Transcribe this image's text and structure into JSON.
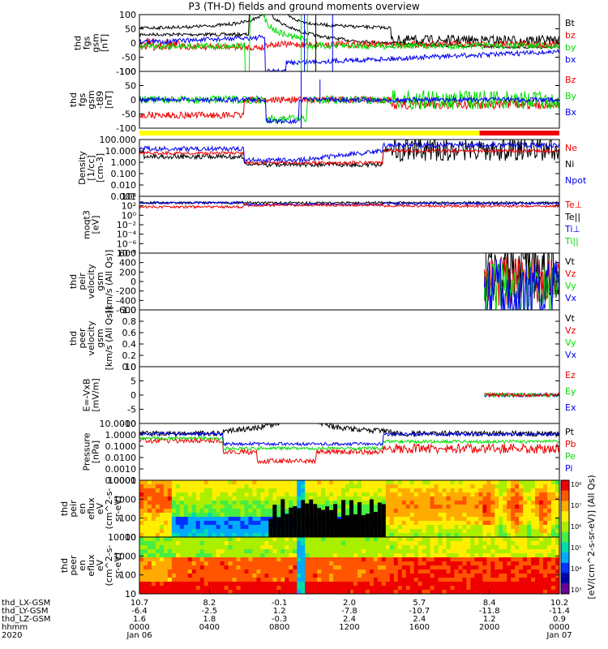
{
  "title": "P3 (TH-D) fields and ground moments overview",
  "colors": {
    "black": "#000000",
    "red": "#ee0000",
    "green": "#00dd00",
    "blue": "#0000ee",
    "yellow": "#ffff00",
    "orbit_red": "#ee0000"
  },
  "chart_data": [
    {
      "type": "line",
      "name": "fgs",
      "ylabel": [
        "thd",
        "fgs",
        "gsm",
        "[nT]"
      ],
      "yticks": [
        "100",
        "50",
        "0",
        "-50",
        "-100"
      ],
      "ylim": [
        -100,
        100
      ],
      "legend": [
        {
          "label": "Bt",
          "color": "black"
        },
        {
          "label": "bz",
          "color": "red"
        },
        {
          "label": "by",
          "color": "green"
        },
        {
          "label": "bx",
          "color": "blue"
        }
      ]
    },
    {
      "type": "line",
      "name": "fgs_t89",
      "ylabel": [
        "thd",
        "fgs",
        "gsm",
        "-t89",
        "[nT]"
      ],
      "yticks": [
        "100",
        "50",
        "0",
        "-50",
        "-100"
      ],
      "ylim": [
        -120,
        120
      ],
      "legend": [
        {
          "label": "Bz",
          "color": "red"
        },
        {
          "label": "By",
          "color": "green"
        },
        {
          "label": "Bx",
          "color": "blue"
        }
      ]
    },
    {
      "type": "line",
      "name": "density",
      "ylabel": [
        "Density",
        "[1/cc]",
        "[cm-3]"
      ],
      "yticks": [
        "100.000",
        "10.000",
        "1.000",
        "0.100",
        "0.010",
        "0.001"
      ],
      "ylim": [
        0.001,
        100
      ],
      "legend": [
        {
          "label": "Ne",
          "color": "red"
        },
        {
          "label": "Ni",
          "color": "black"
        },
        {
          "label": "Npot",
          "color": "blue"
        }
      ]
    },
    {
      "type": "line",
      "name": "temperature",
      "ylabel": [
        "moqt3",
        "[eV]"
      ],
      "yticks": [
        "10⁴",
        "10²",
        "10⁰",
        "10⁻²",
        "10⁻⁴",
        "10⁻⁶",
        "10⁻⁸"
      ],
      "legend": [
        {
          "label": "Te⊥",
          "color": "red"
        },
        {
          "label": "Te||",
          "color": "black"
        },
        {
          "label": "Ti⊥",
          "color": "blue"
        },
        {
          "label": "Ti||",
          "color": "green"
        }
      ]
    },
    {
      "type": "line",
      "name": "peir_velocity",
      "ylabel": [
        "thd",
        "peir",
        "velocity",
        "gsm",
        "[km/s (All Qs)]"
      ],
      "yticks": [
        "600",
        "400",
        "200",
        "0",
        "-200",
        "-400",
        "-600"
      ],
      "ylim": [
        -600,
        600
      ],
      "legend": [
        {
          "label": "Vt",
          "color": "black"
        },
        {
          "label": "Vz",
          "color": "red"
        },
        {
          "label": "Vy",
          "color": "green"
        },
        {
          "label": "Vx",
          "color": "blue"
        }
      ]
    },
    {
      "type": "line",
      "name": "peer_velocity",
      "ylabel": [
        "thd",
        "peer",
        "velocity",
        "gsm",
        "[km/s (All Qs)]"
      ],
      "yticks": [
        "1.0",
        "0.8",
        "0.6",
        "0.4",
        "0.2",
        "0.0"
      ],
      "ylim": [
        0,
        1
      ],
      "legend": [
        {
          "label": "Vt",
          "color": "black"
        },
        {
          "label": "Vz",
          "color": "red"
        },
        {
          "label": "Vy",
          "color": "green"
        },
        {
          "label": "Vx",
          "color": "blue"
        }
      ]
    },
    {
      "type": "line",
      "name": "efield",
      "ylabel": [
        "E=-VxB",
        "[mV/m]"
      ],
      "yticks": [
        "10",
        "5",
        "0",
        "-5",
        "-10"
      ],
      "ylim": [
        -10,
        10
      ],
      "legend": [
        {
          "label": "Ez",
          "color": "red"
        },
        {
          "label": "Ey",
          "color": "green"
        },
        {
          "label": "Ex",
          "color": "blue"
        }
      ]
    },
    {
      "type": "line",
      "name": "pressure",
      "ylabel": [
        "Pressure",
        "[nPa]"
      ],
      "yticks": [
        "10.0000",
        "1.0000",
        "0.1000",
        "0.0100",
        "0.0010",
        "0.0001"
      ],
      "ylim": [
        0.0001,
        10
      ],
      "legend": [
        {
          "label": "Pt",
          "color": "black"
        },
        {
          "label": "Pb",
          "color": "red"
        },
        {
          "label": "Pe",
          "color": "green"
        },
        {
          "label": "Pi",
          "color": "blue"
        }
      ]
    },
    {
      "type": "heatmap",
      "name": "peir_eflux",
      "ylabel": [
        "thd",
        "peir",
        "en",
        "eflux",
        "eV",
        "(cm^2-s-",
        "sr-eV)"
      ],
      "yticks": [
        "10000",
        "1000",
        "100",
        "10"
      ],
      "ylim": [
        5,
        30000
      ]
    },
    {
      "type": "heatmap",
      "name": "peer_eflux",
      "ylabel": [
        "thd",
        "peer",
        "en",
        "eflux",
        "eV",
        "(cm^2-s-",
        "sr-eV)"
      ],
      "yticks": [
        "10000",
        "1000",
        "100",
        "10"
      ],
      "ylim": [
        5,
        30000
      ]
    }
  ],
  "colorbar": {
    "labels": [
      "10⁸",
      "10⁷",
      "10⁶",
      "10⁵",
      "10⁴",
      "10³"
    ],
    "title": "[eV/(cm^2-s-sr-eV)] (All Qs)"
  },
  "xaxis": {
    "row_labels": [
      "thd_LX-GSM",
      "thd_LY-GSM",
      "thd_LZ-GSM",
      "hhmm",
      "2020"
    ],
    "ticks": [
      {
        "vals": [
          "10.7",
          "-6.4",
          "1.6",
          "0000",
          "Jan 06"
        ]
      },
      {
        "vals": [
          "8.2",
          "-2.5",
          "1.8",
          "0400",
          ""
        ]
      },
      {
        "vals": [
          "-0.1",
          "1.2",
          "-0.3",
          "0800",
          ""
        ]
      },
      {
        "vals": [
          "2.0",
          "-7.8",
          "2.4",
          "1200",
          ""
        ]
      },
      {
        "vals": [
          "5.7",
          "-10.7",
          "2.4",
          "1600",
          ""
        ]
      },
      {
        "vals": [
          "8.4",
          "-11.8",
          "1.2",
          "2000",
          ""
        ]
      },
      {
        "vals": [
          "10.2",
          "-11.4",
          "0.9",
          "0000",
          "Jan 07"
        ]
      }
    ]
  }
}
